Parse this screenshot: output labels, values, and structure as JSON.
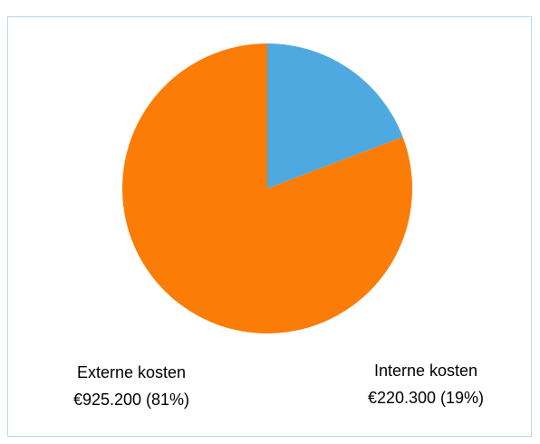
{
  "chart_data": {
    "type": "pie",
    "categories": [
      "Interne kosten",
      "Externe kosten"
    ],
    "values": [
      220300,
      925200
    ],
    "value_labels": [
      "€220.300 (19%)",
      "€925.200 (81%)"
    ],
    "colors": [
      "#4ea9e1",
      "#fb7c06"
    ]
  }
}
